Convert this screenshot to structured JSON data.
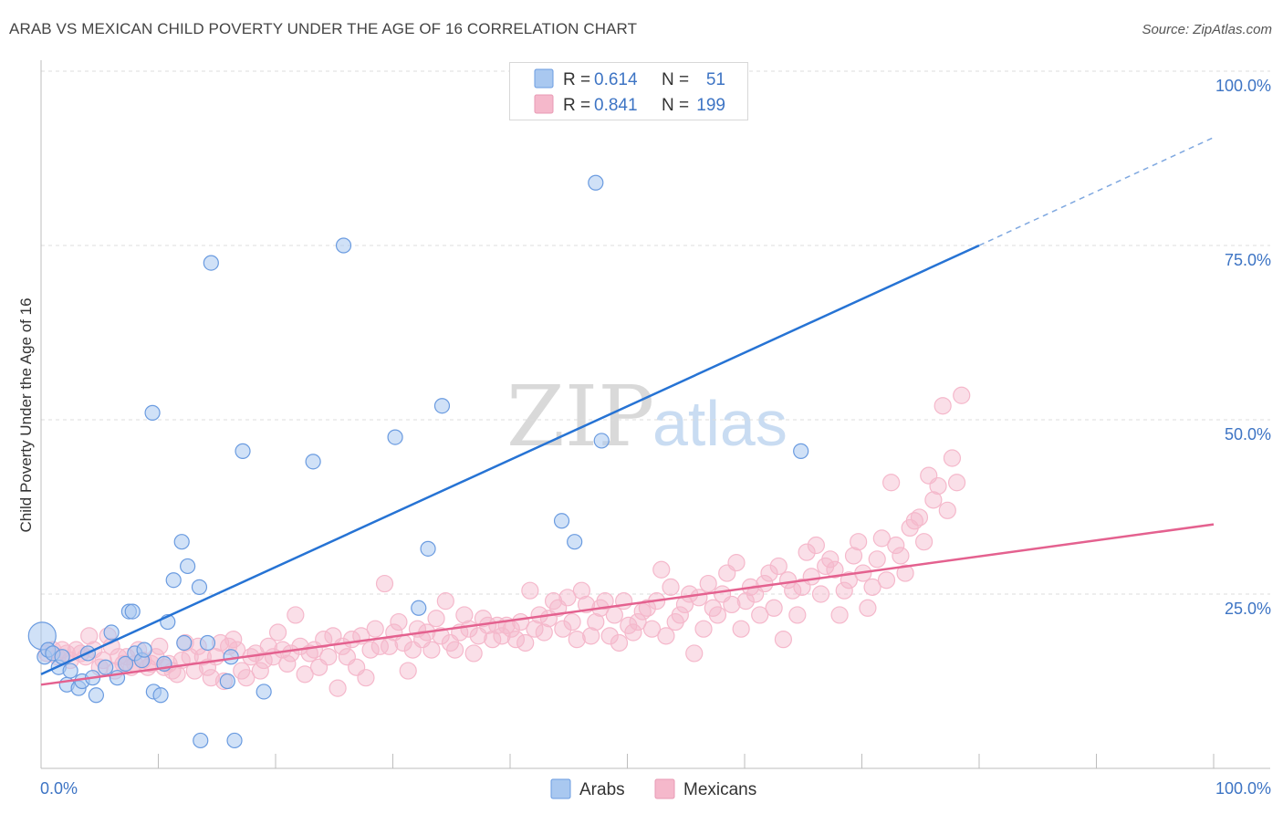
{
  "header": {
    "title": "ARAB VS MEXICAN CHILD POVERTY UNDER THE AGE OF 16 CORRELATION CHART",
    "source": "Source: ZipAtlas.com"
  },
  "watermark": {
    "zip": "ZIP",
    "atlas": "atlas"
  },
  "legend": {
    "rows": [
      {
        "r_label": "R =",
        "r_value": "0.614",
        "n_label": "N =",
        "n_value": "51"
      },
      {
        "r_label": "R =",
        "r_value": "0.841",
        "n_label": "N =",
        "n_value": "199"
      }
    ]
  },
  "chart_data": {
    "type": "scatter",
    "title": "ARAB VS MEXICAN CHILD POVERTY UNDER THE AGE OF 16 CORRELATION CHART",
    "xlabel": "",
    "ylabel": "Child Poverty Under the Age of 16",
    "xlim": [
      0,
      100
    ],
    "ylim": [
      0,
      100
    ],
    "x_tick_labels": [
      "0.0%",
      "100.0%"
    ],
    "y_tick_labels": [
      "25.0%",
      "50.0%",
      "75.0%",
      "100.0%"
    ],
    "y_ticks": [
      25,
      50,
      75,
      100
    ],
    "grid": true,
    "legend_position": "top-center",
    "colors": {
      "arabs": "#a9c8f0",
      "arabs_line": "#2673d4",
      "mexicans": "#f5b8cb",
      "mexicans_line": "#e4618f",
      "tick_text": "#3d74c4"
    },
    "series": [
      {
        "name": "Arabs",
        "r": 0.614,
        "n": 51,
        "trend": {
          "x": [
            0,
            80
          ],
          "y": [
            13.5,
            75
          ],
          "dashed_to": [
            100,
            90.5
          ]
        },
        "points": [
          [
            0.1,
            19
          ],
          [
            0.3,
            16
          ],
          [
            0.6,
            17
          ],
          [
            1.0,
            16.5
          ],
          [
            1.5,
            14.5
          ],
          [
            1.8,
            16
          ],
          [
            2.2,
            12
          ],
          [
            2.5,
            14
          ],
          [
            3.2,
            11.5
          ],
          [
            3.5,
            12.5
          ],
          [
            4.0,
            16.5
          ],
          [
            4.4,
            13
          ],
          [
            4.7,
            10.5
          ],
          [
            5.5,
            14.5
          ],
          [
            6.0,
            19.5
          ],
          [
            6.5,
            13
          ],
          [
            7.2,
            15
          ],
          [
            7.5,
            22.5
          ],
          [
            7.8,
            22.5
          ],
          [
            8.0,
            16.5
          ],
          [
            8.6,
            15.5
          ],
          [
            8.8,
            17
          ],
          [
            9.5,
            51
          ],
          [
            9.6,
            11
          ],
          [
            10.2,
            10.5
          ],
          [
            10.5,
            15
          ],
          [
            10.8,
            21
          ],
          [
            11.3,
            27
          ],
          [
            12.0,
            32.5
          ],
          [
            12.2,
            18
          ],
          [
            12.5,
            29
          ],
          [
            13.5,
            26
          ],
          [
            13.6,
            4
          ],
          [
            14.2,
            18
          ],
          [
            14.5,
            72.5
          ],
          [
            15.9,
            12.5
          ],
          [
            16.2,
            16
          ],
          [
            16.5,
            4
          ],
          [
            17.2,
            45.5
          ],
          [
            19.0,
            11
          ],
          [
            23.2,
            44
          ],
          [
            25.8,
            75
          ],
          [
            30.2,
            47.5
          ],
          [
            32.2,
            23
          ],
          [
            33.0,
            31.5
          ],
          [
            34.2,
            52
          ],
          [
            44.4,
            35.5
          ],
          [
            45.5,
            32.5
          ],
          [
            47.3,
            84
          ],
          [
            47.8,
            47
          ],
          [
            64.8,
            45.5
          ]
        ]
      },
      {
        "name": "Mexicans",
        "r": 0.841,
        "n": 199,
        "trend": {
          "x": [
            0,
            100
          ],
          "y": [
            12,
            35
          ]
        },
        "points": [
          [
            0.5,
            16.5
          ],
          [
            1.0,
            17
          ],
          [
            1.4,
            16
          ],
          [
            1.8,
            17
          ],
          [
            2.2,
            16.5
          ],
          [
            2.5,
            15.5
          ],
          [
            3.0,
            17
          ],
          [
            3.4,
            16.5
          ],
          [
            3.8,
            16
          ],
          [
            4.1,
            19
          ],
          [
            4.5,
            17
          ],
          [
            5.0,
            14.5
          ],
          [
            5.3,
            15.5
          ],
          [
            5.7,
            19
          ],
          [
            6.0,
            17.5
          ],
          [
            6.3,
            14
          ],
          [
            6.6,
            16
          ],
          [
            7.0,
            15
          ],
          [
            7.3,
            16
          ],
          [
            7.7,
            14.5
          ],
          [
            8.0,
            15
          ],
          [
            8.3,
            17
          ],
          [
            8.7,
            15.5
          ],
          [
            9.1,
            14.5
          ],
          [
            9.4,
            15
          ],
          [
            9.8,
            16
          ],
          [
            10.1,
            17.5
          ],
          [
            10.5,
            14.5
          ],
          [
            10.9,
            15
          ],
          [
            11.2,
            14
          ],
          [
            11.6,
            13.5
          ],
          [
            12.0,
            15.5
          ],
          [
            12.3,
            18
          ],
          [
            12.7,
            16
          ],
          [
            13.1,
            14
          ],
          [
            13.4,
            17.5
          ],
          [
            13.8,
            16
          ],
          [
            14.2,
            14.5
          ],
          [
            14.5,
            13
          ],
          [
            14.9,
            16
          ],
          [
            15.3,
            18
          ],
          [
            15.6,
            12.5
          ],
          [
            16.0,
            17.5
          ],
          [
            16.4,
            18.5
          ],
          [
            16.7,
            17
          ],
          [
            17.1,
            14
          ],
          [
            17.5,
            13
          ],
          [
            17.9,
            16
          ],
          [
            18.3,
            16.5
          ],
          [
            18.7,
            14
          ],
          [
            19.0,
            15.5
          ],
          [
            19.4,
            17.5
          ],
          [
            19.8,
            16
          ],
          [
            20.2,
            19.5
          ],
          [
            20.6,
            17
          ],
          [
            21.0,
            15
          ],
          [
            21.3,
            16.5
          ],
          [
            21.7,
            22
          ],
          [
            22.1,
            17.5
          ],
          [
            22.5,
            13.5
          ],
          [
            22.9,
            16.5
          ],
          [
            23.3,
            17
          ],
          [
            23.7,
            14.5
          ],
          [
            24.1,
            18.5
          ],
          [
            24.5,
            16
          ],
          [
            24.9,
            19
          ],
          [
            25.3,
            11.5
          ],
          [
            25.7,
            17.5
          ],
          [
            26.1,
            16
          ],
          [
            26.5,
            18.5
          ],
          [
            26.9,
            14.5
          ],
          [
            27.3,
            19
          ],
          [
            27.7,
            13
          ],
          [
            28.1,
            17
          ],
          [
            28.5,
            20
          ],
          [
            28.9,
            17.5
          ],
          [
            29.3,
            26.5
          ],
          [
            29.7,
            17.5
          ],
          [
            30.1,
            19.5
          ],
          [
            30.5,
            21
          ],
          [
            30.9,
            18
          ],
          [
            31.3,
            14
          ],
          [
            31.7,
            17
          ],
          [
            32.1,
            20
          ],
          [
            32.5,
            18.5
          ],
          [
            32.9,
            19.5
          ],
          [
            33.3,
            17
          ],
          [
            33.7,
            21.5
          ],
          [
            34.1,
            19
          ],
          [
            34.5,
            24
          ],
          [
            34.9,
            18
          ],
          [
            35.3,
            17
          ],
          [
            35.7,
            19.5
          ],
          [
            36.1,
            22
          ],
          [
            36.5,
            20
          ],
          [
            36.9,
            16.5
          ],
          [
            37.3,
            19
          ],
          [
            37.7,
            21.5
          ],
          [
            38.1,
            20.5
          ],
          [
            38.5,
            18.5
          ],
          [
            38.9,
            20.5
          ],
          [
            39.3,
            19
          ],
          [
            39.7,
            20.5
          ],
          [
            40.1,
            20
          ],
          [
            40.5,
            18.5
          ],
          [
            40.9,
            21
          ],
          [
            41.3,
            18
          ],
          [
            41.7,
            25.5
          ],
          [
            42.1,
            20
          ],
          [
            42.5,
            22
          ],
          [
            42.9,
            19.5
          ],
          [
            43.3,
            21.5
          ],
          [
            43.7,
            24
          ],
          [
            44.1,
            23
          ],
          [
            44.5,
            20
          ],
          [
            44.9,
            24.5
          ],
          [
            45.3,
            21
          ],
          [
            45.7,
            18.5
          ],
          [
            46.1,
            25.5
          ],
          [
            46.5,
            23.5
          ],
          [
            46.9,
            19
          ],
          [
            47.3,
            21
          ],
          [
            47.7,
            23
          ],
          [
            48.1,
            24
          ],
          [
            48.5,
            19
          ],
          [
            48.9,
            22
          ],
          [
            49.3,
            18
          ],
          [
            49.7,
            24
          ],
          [
            50.1,
            20.5
          ],
          [
            50.5,
            19.5
          ],
          [
            50.9,
            21
          ],
          [
            51.3,
            22.5
          ],
          [
            51.7,
            23
          ],
          [
            52.1,
            20
          ],
          [
            52.5,
            24
          ],
          [
            52.9,
            28.5
          ],
          [
            53.3,
            19
          ],
          [
            53.7,
            26
          ],
          [
            54.1,
            21
          ],
          [
            54.5,
            22
          ],
          [
            54.9,
            23.5
          ],
          [
            55.3,
            25
          ],
          [
            55.7,
            16.5
          ],
          [
            56.1,
            24.5
          ],
          [
            56.5,
            20
          ],
          [
            56.9,
            26.5
          ],
          [
            57.3,
            23
          ],
          [
            57.7,
            22
          ],
          [
            58.1,
            25
          ],
          [
            58.5,
            28
          ],
          [
            58.9,
            23.5
          ],
          [
            59.3,
            29.5
          ],
          [
            59.7,
            20
          ],
          [
            60.1,
            24
          ],
          [
            60.5,
            26
          ],
          [
            60.9,
            25
          ],
          [
            61.3,
            22
          ],
          [
            61.7,
            26.5
          ],
          [
            62.1,
            28
          ],
          [
            62.5,
            23
          ],
          [
            62.9,
            29
          ],
          [
            63.3,
            18.5
          ],
          [
            63.7,
            27
          ],
          [
            64.1,
            25.5
          ],
          [
            64.5,
            22
          ],
          [
            64.9,
            26
          ],
          [
            65.3,
            31
          ],
          [
            65.7,
            27.5
          ],
          [
            66.1,
            32
          ],
          [
            66.5,
            25
          ],
          [
            66.9,
            29
          ],
          [
            67.3,
            30
          ],
          [
            67.7,
            28.5
          ],
          [
            68.1,
            22
          ],
          [
            68.5,
            25.5
          ],
          [
            68.9,
            27
          ],
          [
            69.3,
            30.5
          ],
          [
            69.7,
            32.5
          ],
          [
            70.1,
            28
          ],
          [
            70.5,
            23
          ],
          [
            70.9,
            26
          ],
          [
            71.3,
            30
          ],
          [
            71.7,
            33
          ],
          [
            72.1,
            27
          ],
          [
            72.5,
            41
          ],
          [
            72.9,
            32
          ],
          [
            73.3,
            30.5
          ],
          [
            73.7,
            28
          ],
          [
            74.1,
            34.5
          ],
          [
            74.5,
            35.5
          ],
          [
            74.9,
            36
          ],
          [
            75.3,
            32.5
          ],
          [
            75.7,
            42
          ],
          [
            76.1,
            38.5
          ],
          [
            76.5,
            40.5
          ],
          [
            76.9,
            52
          ],
          [
            77.3,
            37
          ],
          [
            77.7,
            44.5
          ],
          [
            78.1,
            41
          ],
          [
            78.5,
            53.5
          ]
        ]
      }
    ]
  },
  "bottom_legend": [
    "Arabs",
    "Mexicans"
  ]
}
